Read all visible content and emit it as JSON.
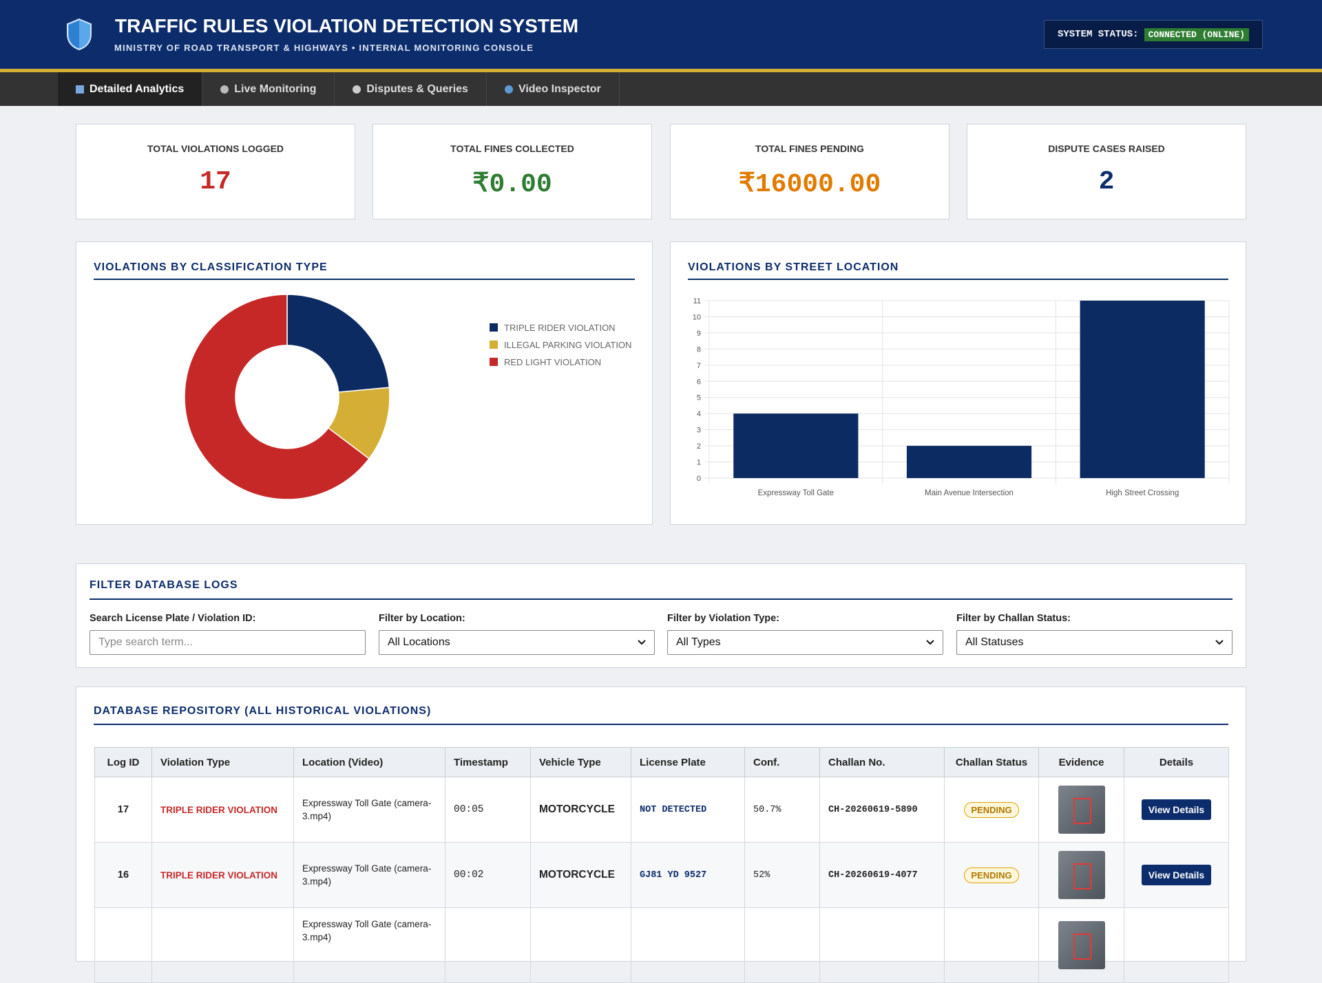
{
  "header": {
    "title": "TRAFFIC RULES VIOLATION DETECTION SYSTEM",
    "subtitle": "MINISTRY OF ROAD TRANSPORT & HIGHWAYS • INTERNAL MONITORING CONSOLE",
    "status_label": "SYSTEM STATUS:",
    "status_value": "CONNECTED (ONLINE)"
  },
  "nav": [
    "Detailed Analytics",
    "Live Monitoring",
    "Disputes & Queries",
    "Video Inspector"
  ],
  "stats": [
    {
      "label": "TOTAL VIOLATIONS LOGGED",
      "value": "17"
    },
    {
      "label": "TOTAL FINES COLLECTED",
      "value": "₹0.00"
    },
    {
      "label": "TOTAL FINES PENDING",
      "value": "₹16000.00"
    },
    {
      "label": "DISPUTE CASES RAISED",
      "value": "2"
    }
  ],
  "chart_data": [
    {
      "type": "doughnut",
      "title": "VIOLATIONS BY CLASSIFICATION TYPE",
      "categories": [
        "TRIPLE RIDER VIOLATION",
        "ILLEGAL PARKING VIOLATION",
        "RED LIGHT VIOLATION"
      ],
      "values": [
        4,
        2,
        11
      ],
      "colors": [
        "#0d2b63",
        "#d4ae35",
        "#c62828"
      ]
    },
    {
      "type": "bar",
      "title": "VIOLATIONS BY STREET LOCATION",
      "categories": [
        "Expressway Toll Gate",
        "Main Avenue Intersection",
        "High Street Crossing"
      ],
      "values": [
        4,
        2,
        11
      ],
      "color": "#0d2b63",
      "ylim": [
        0,
        11
      ],
      "yticks": [
        0,
        1,
        2,
        3,
        4,
        5,
        6,
        7,
        8,
        9,
        10,
        11
      ],
      "grid": true
    }
  ],
  "filters": {
    "title": "FILTER DATABASE LOGS",
    "fields": [
      {
        "label": "Search License Plate / Violation ID:",
        "placeholder": "Type search term..."
      },
      {
        "label": "Filter by Location:",
        "value": "All Locations"
      },
      {
        "label": "Filter by Violation Type:",
        "value": "All Types"
      },
      {
        "label": "Filter by Challan Status:",
        "value": "All Statuses"
      }
    ]
  },
  "table": {
    "title": "DATABASE REPOSITORY (ALL HISTORICAL VIOLATIONS)",
    "columns": [
      "Log ID",
      "Violation Type",
      "Location (Video)",
      "Timestamp",
      "Vehicle Type",
      "License Plate",
      "Conf.",
      "Challan No.",
      "Challan Status",
      "Evidence",
      "Details"
    ],
    "rows": [
      {
        "log_id": "17",
        "violation": "TRIPLE RIDER VIOLATION",
        "location": "Expressway Toll Gate (camera-3.mp4)",
        "timestamp": "00:05",
        "vehicle": "MOTORCYCLE",
        "plate": "NOT DETECTED",
        "conf": "50.7%",
        "challan": "CH-20260619-5890",
        "status": "PENDING",
        "details": "View Details"
      },
      {
        "log_id": "16",
        "violation": "TRIPLE RIDER VIOLATION",
        "location": "Expressway Toll Gate (camera-3.mp4)",
        "timestamp": "00:02",
        "vehicle": "MOTORCYCLE",
        "plate": "GJ81 YD 9527",
        "conf": "52%",
        "challan": "CH-20260619-4077",
        "status": "PENDING",
        "details": "View Details"
      },
      {
        "location": "Expressway Toll Gate (camera-3.mp4)"
      }
    ]
  }
}
